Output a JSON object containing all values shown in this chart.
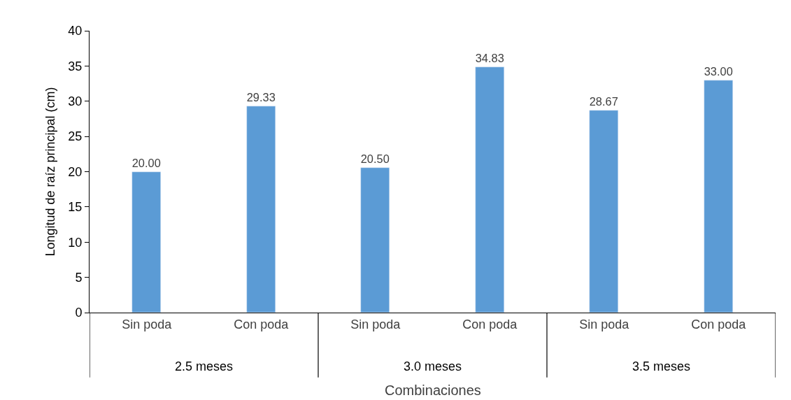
{
  "chart_data": {
    "type": "bar",
    "ylabel": "Longitud de raíz principal (cm)",
    "xlabel": "Combinaciones",
    "categories": [
      "Sin poda",
      "Con poda",
      "Sin poda",
      "Con poda",
      "Sin poda",
      "Con poda"
    ],
    "values": [
      20.0,
      29.33,
      20.5,
      34.83,
      28.67,
      33.0
    ],
    "value_labels": [
      "20.00",
      "29.33",
      "20.50",
      "34.83",
      "28.67",
      "33.00"
    ],
    "color": "#5b9bd5",
    "annotations": [
      "2.5 meses",
      "3.0 meses",
      "3.5 meses"
    ],
    "ylim": [
      0,
      40
    ],
    "yticks": [
      0,
      5,
      10,
      15,
      20,
      25,
      30,
      35,
      40
    ]
  }
}
